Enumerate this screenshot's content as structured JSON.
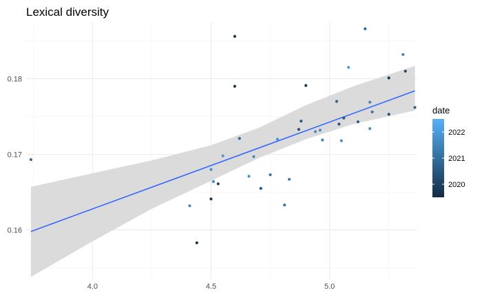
{
  "chart_data": {
    "type": "scatter",
    "title": "Lexical diversity",
    "xlabel": "",
    "ylabel": "",
    "xlim": [
      3.72,
      5.37
    ],
    "ylim": [
      0.1535,
      0.1875
    ],
    "x_ticks": [
      4.0,
      4.5,
      5.0
    ],
    "x_tick_labels": [
      "4.0",
      "4.5",
      "5.0"
    ],
    "y_ticks": [
      0.16,
      0.17,
      0.18
    ],
    "y_tick_labels": [
      "0.16",
      "0.17",
      "0.18"
    ],
    "grid": true,
    "color_scale": {
      "name": "date",
      "min": 2019.5,
      "max": 2022.5,
      "low_color": "#132b43",
      "high_color": "#56b1f7",
      "ticks": [
        2020,
        2021,
        2022
      ],
      "tick_labels": [
        "2020",
        "2021",
        "2022"
      ]
    },
    "legend_position": "right",
    "points": [
      {
        "x": 3.74,
        "y": 0.1693,
        "date": 2020.9
      },
      {
        "x": 4.41,
        "y": 0.1632,
        "date": 2021.6
      },
      {
        "x": 4.44,
        "y": 0.1583,
        "date": 2019.7
      },
      {
        "x": 4.5,
        "y": 0.1641,
        "date": 2019.7
      },
      {
        "x": 4.5,
        "y": 0.168,
        "date": 2021.8
      },
      {
        "x": 4.51,
        "y": 0.1664,
        "date": 2021.7
      },
      {
        "x": 4.53,
        "y": 0.1661,
        "date": 2020.1
      },
      {
        "x": 4.55,
        "y": 0.1698,
        "date": 2021.9
      },
      {
        "x": 4.6,
        "y": 0.1856,
        "date": 2019.8
      },
      {
        "x": 4.6,
        "y": 0.179,
        "date": 2019.7
      },
      {
        "x": 4.62,
        "y": 0.1721,
        "date": 2020.9
      },
      {
        "x": 4.66,
        "y": 0.1671,
        "date": 2021.8
      },
      {
        "x": 4.68,
        "y": 0.1697,
        "date": 2021.6
      },
      {
        "x": 4.71,
        "y": 0.1655,
        "date": 2020.5
      },
      {
        "x": 4.75,
        "y": 0.1673,
        "date": 2021.1
      },
      {
        "x": 4.78,
        "y": 0.172,
        "date": 2021.9
      },
      {
        "x": 4.81,
        "y": 0.1633,
        "date": 2021.1
      },
      {
        "x": 4.83,
        "y": 0.1667,
        "date": 2021.2
      },
      {
        "x": 4.87,
        "y": 0.1733,
        "date": 2020.3
      },
      {
        "x": 4.88,
        "y": 0.1744,
        "date": 2020.5
      },
      {
        "x": 4.9,
        "y": 0.1791,
        "date": 2019.8
      },
      {
        "x": 4.94,
        "y": 0.173,
        "date": 2021.7
      },
      {
        "x": 4.96,
        "y": 0.1732,
        "date": 2021.6
      },
      {
        "x": 4.97,
        "y": 0.1719,
        "date": 2021.5
      },
      {
        "x": 5.03,
        "y": 0.177,
        "date": 2020.8
      },
      {
        "x": 5.04,
        "y": 0.174,
        "date": 2020.4
      },
      {
        "x": 5.05,
        "y": 0.1718,
        "date": 2021.7
      },
      {
        "x": 5.06,
        "y": 0.1748,
        "date": 2020.5
      },
      {
        "x": 5.08,
        "y": 0.1815,
        "date": 2022.1
      },
      {
        "x": 5.12,
        "y": 0.1743,
        "date": 2020.6
      },
      {
        "x": 5.15,
        "y": 0.1866,
        "date": 2020.9
      },
      {
        "x": 5.17,
        "y": 0.1769,
        "date": 2021.6
      },
      {
        "x": 5.17,
        "y": 0.1734,
        "date": 2021.8
      },
      {
        "x": 5.18,
        "y": 0.1756,
        "date": 2021.2
      },
      {
        "x": 5.25,
        "y": 0.1801,
        "date": 2019.8
      },
      {
        "x": 5.25,
        "y": 0.1753,
        "date": 2020.3
      },
      {
        "x": 5.31,
        "y": 0.1832,
        "date": 2021.4
      },
      {
        "x": 5.32,
        "y": 0.181,
        "date": 2020.2
      },
      {
        "x": 5.36,
        "y": 0.1762,
        "date": 2020.7
      }
    ],
    "trend_line": {
      "color": "#3366ff",
      "x": [
        3.74,
        5.36
      ],
      "y": [
        0.1598,
        0.1784
      ]
    },
    "confidence_band": {
      "color": "#d9d9d9",
      "x": [
        3.74,
        4.0,
        4.25,
        4.5,
        4.7,
        4.9,
        5.1,
        5.36
      ],
      "lower": [
        0.1538,
        0.1585,
        0.1628,
        0.1665,
        0.1695,
        0.172,
        0.174,
        0.1758
      ],
      "upper": [
        0.1657,
        0.1675,
        0.1692,
        0.1712,
        0.1735,
        0.1765,
        0.179,
        0.1817
      ]
    }
  }
}
